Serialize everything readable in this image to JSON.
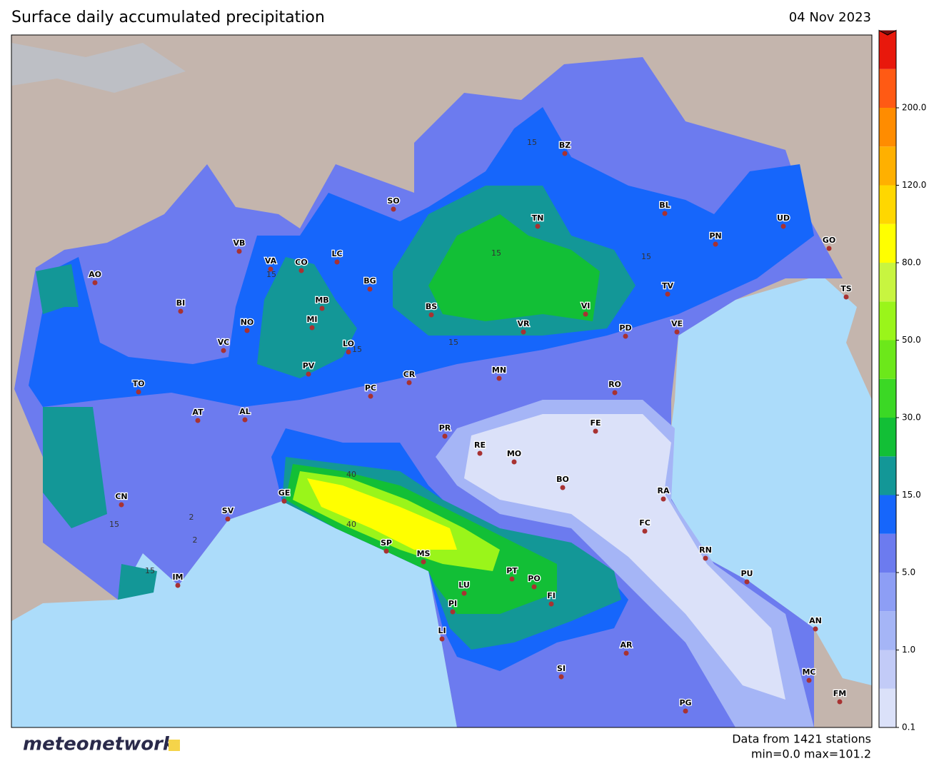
{
  "header": {
    "title": "Surface daily accumulated precipitation",
    "date": "04 Nov 2023"
  },
  "colorbar": {
    "labels": [
      "0.1",
      "1.0",
      "5.0",
      "15.0",
      "30.0",
      "50.0",
      "80.0",
      "120.0",
      "200.0"
    ]
  },
  "map": {
    "cities": [
      "AO",
      "BI",
      "VB",
      "VA",
      "CO",
      "LC",
      "SO",
      "BG",
      "MB",
      "MI",
      "NO",
      "VC",
      "LO",
      "PV",
      "TO",
      "AT",
      "AL",
      "CN",
      "SV",
      "IM",
      "GE",
      "SP",
      "MS",
      "LU",
      "PI",
      "LI",
      "PT",
      "PO",
      "FI",
      "AR",
      "SI",
      "PG",
      "CR",
      "PC",
      "PR",
      "RE",
      "MO",
      "MN",
      "BS",
      "VR",
      "VI",
      "TN",
      "BZ",
      "BL",
      "TV",
      "PD",
      "VE",
      "RO",
      "FE",
      "BO",
      "RA",
      "FC",
      "RN",
      "PU",
      "AN",
      "MC",
      "FM",
      "PN",
      "UD",
      "GO",
      "TS"
    ],
    "contour_labels": [
      "15",
      "15",
      "15",
      "15",
      "15",
      "15",
      "15",
      "15",
      "40",
      "40",
      "2",
      "2"
    ]
  },
  "footer": {
    "logo": "meteonetwork",
    "stations": "Data from 1421 stations",
    "range": "min=0.0 max=101.2"
  }
}
